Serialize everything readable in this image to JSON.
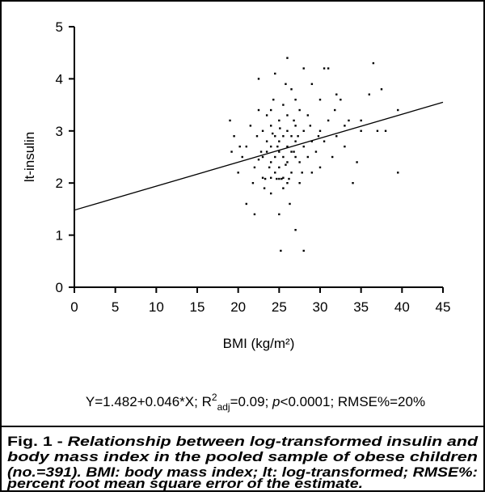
{
  "chart_data": {
    "type": "scatter",
    "xlabel": "BMI (kg/m²)",
    "ylabel": "lt-insulin",
    "xlim": [
      0,
      45
    ],
    "xticks": [
      0,
      5,
      10,
      15,
      20,
      25,
      30,
      35,
      40,
      45
    ],
    "ylim": [
      0,
      5
    ],
    "yticks": [
      0,
      1,
      2,
      3,
      4,
      5
    ],
    "color": "#000000",
    "x": [
      19,
      19.2,
      19.5,
      20,
      20.5,
      21,
      21,
      21.5,
      22,
      22,
      22.3,
      22.5,
      22.5,
      23,
      23,
      23,
      23.2,
      23.5,
      23.5,
      23.5,
      24,
      24,
      24,
      24,
      24,
      24.3,
      24.5,
      24.5,
      24.5,
      24.5,
      25,
      25,
      25,
      25,
      25,
      25,
      25.2,
      25.5,
      25.5,
      25.5,
      25.5,
      25.5,
      26,
      26,
      26,
      26,
      26,
      26,
      26.3,
      26.5,
      26.5,
      26.5,
      26.5,
      27,
      27,
      27,
      27,
      27,
      27.5,
      27.5,
      27.5,
      28,
      28,
      28,
      28,
      28.5,
      28.5,
      29,
      29,
      29,
      29.5,
      30,
      30,
      30,
      30.5,
      31,
      31,
      31.5,
      32,
      32,
      33,
      33,
      34,
      34.5,
      35,
      35,
      36,
      36.5,
      37,
      37.5,
      38,
      39.5,
      39.5,
      30.5,
      32.5,
      33.5,
      24,
      25.8,
      27.8,
      22.8,
      21.8,
      20.2,
      23.8,
      26.8,
      28.8,
      29.8,
      31.8,
      24.8,
      25.3,
      24.7,
      26.2,
      23.3,
      25.8,
      26.8,
      27.3,
      22.5,
      25.1,
      24.2
    ],
    "y": [
      3.2,
      2.6,
      2.9,
      2.2,
      2.5,
      2.7,
      1.6,
      3.1,
      2.3,
      1.4,
      2.9,
      3.4,
      4.0,
      2.5,
      2.1,
      3.0,
      1.9,
      2.6,
      2.8,
      3.3,
      2.1,
      2.4,
      2.7,
      3.1,
      1.8,
      3.6,
      2.2,
      2.9,
      2.5,
      4.1,
      2.08,
      2.3,
      2.6,
      2.8,
      3.2,
      1.4,
      0.7,
      2.5,
      2.9,
      3.5,
      2.1,
      1.9,
      2.0,
      2.4,
      2.7,
      3.0,
      3.3,
      4.4,
      1.6,
      2.6,
      2.2,
      3.8,
      2.9,
      2.5,
      2.8,
      3.1,
      1.1,
      3.6,
      2.4,
      3.4,
      2.0,
      2.7,
      0.7,
      3.0,
      4.2,
      2.5,
      3.3,
      2.8,
      2.2,
      3.9,
      2.6,
      3.0,
      2.3,
      3.6,
      2.8,
      3.2,
      4.2,
      2.5,
      3.7,
      2.9,
      3.1,
      2.7,
      2.0,
      2.4,
      3.0,
      3.2,
      3.7,
      4.3,
      3.0,
      3.8,
      3.0,
      2.2,
      3.4,
      4.2,
      3.6,
      3.2,
      3.4,
      3.9,
      2.2,
      2.6,
      2.0,
      2.7,
      2.3,
      3.2,
      3.1,
      2.9,
      3.4,
      2.7,
      2.08,
      2.08,
      2.08,
      2.08,
      2.35,
      2.6,
      2.9,
      2.45,
      3.05,
      2.95
    ],
    "fit": {
      "x": [
        0,
        45
      ],
      "y": [
        1.48,
        3.55
      ]
    },
    "equation": [
      "Y=1.482+0.046*X; R",
      "2",
      "adj",
      "=0.09; ",
      "p",
      "<0.0001; RMSE%=20%"
    ],
    "caption": {
      "label": "Fig. 1 - ",
      "lines": [
        "Relationship between log-transformed insulin and",
        "body mass index in the pooled sample of obese children",
        "(no.=391). BMI: body mass index; lt: log-transformed; RMSE%:",
        "percent root mean square error of the estimate."
      ]
    }
  }
}
